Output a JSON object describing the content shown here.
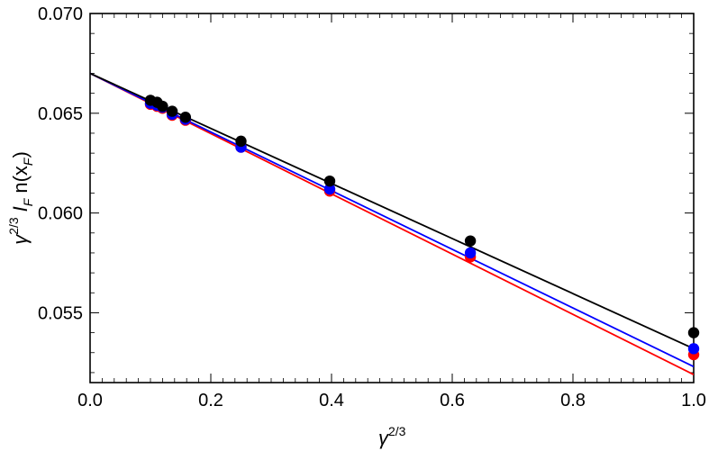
{
  "chart_data": {
    "type": "scatter",
    "xlabel_parts": {
      "base": "γ",
      "exp": "2/3"
    },
    "ylabel_parts": {
      "gamma": "γ",
      "gamma_exp": "2/3",
      "I": "I",
      "I_sub": "F",
      "n": "n(x",
      "x_sub": "F",
      "close": ")"
    },
    "xlim": [
      0.0,
      1.0
    ],
    "ylim": [
      0.0515,
      0.07
    ],
    "x_ticks": [
      0.0,
      0.2,
      0.4,
      0.6,
      0.8,
      1.0
    ],
    "x_tick_labels": [
      "0.0",
      "0.2",
      "0.4",
      "0.6",
      "0.8",
      "1.0"
    ],
    "y_ticks": [
      0.055,
      0.06,
      0.065,
      0.07
    ],
    "y_tick_labels": [
      "0.055",
      "0.060",
      "0.065",
      "0.070"
    ],
    "grid": false,
    "series": [
      {
        "color": "#ff0000",
        "x": [
          0.1,
          0.111,
          0.12,
          0.136,
          0.158,
          0.25,
          0.397,
          0.63,
          1.0
        ],
        "y": [
          0.06545,
          0.06535,
          0.06525,
          0.0649,
          0.06465,
          0.0633,
          0.0611,
          0.0578,
          0.0529
        ],
        "fit": {
          "intercept": 0.067,
          "slope": -0.0151
        }
      },
      {
        "color": "#0000ff",
        "x": [
          0.1,
          0.111,
          0.12,
          0.136,
          0.158,
          0.25,
          0.397,
          0.63,
          1.0
        ],
        "y": [
          0.0655,
          0.0654,
          0.0653,
          0.06495,
          0.0647,
          0.0633,
          0.0612,
          0.058,
          0.0532
        ],
        "fit": {
          "intercept": 0.067,
          "slope": -0.0147
        }
      },
      {
        "color": "#000000",
        "x": [
          0.1,
          0.111,
          0.12,
          0.136,
          0.158,
          0.25,
          0.397,
          0.63,
          1.0
        ],
        "y": [
          0.06565,
          0.06555,
          0.06535,
          0.0651,
          0.0648,
          0.0636,
          0.0616,
          0.0586,
          0.054
        ],
        "fit": {
          "intercept": 0.067,
          "slope": -0.0138
        }
      }
    ]
  }
}
